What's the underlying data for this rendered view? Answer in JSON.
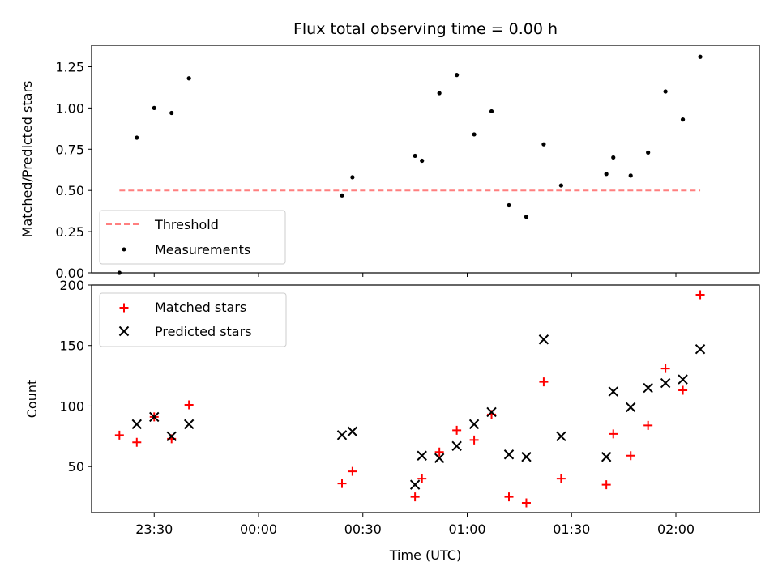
{
  "chart_data": [
    {
      "type": "scatter",
      "title": "Flux total observing time = 0.00 h",
      "xlabel": "",
      "ylabel": "Matched/Predicted stars",
      "ylim": [
        0.0,
        1.38
      ],
      "yticks": [
        "0.00",
        "0.25",
        "0.50",
        "0.75",
        "1.00",
        "1.25"
      ],
      "x_axis": {
        "type": "time",
        "range": [
          "23:12",
          "02:24"
        ],
        "tick_times": [
          "23:30",
          "00:00",
          "00:30",
          "01:00",
          "01:30",
          "02:00"
        ],
        "tick_labels_shown": false
      },
      "grid": false,
      "legend": {
        "placement": "lower-left",
        "entries": [
          "Threshold",
          "Measurements"
        ]
      },
      "threshold": {
        "name": "Threshold",
        "value": 0.5,
        "x_range": [
          "23:20",
          "02:07"
        ],
        "color": "#ff7f7f",
        "style": "dashed"
      },
      "series": [
        {
          "name": "Measurements",
          "marker": "dot",
          "color": "#000000",
          "x": [
            "23:20",
            "23:25",
            "23:30",
            "23:35",
            "23:40",
            "00:24",
            "00:27",
            "00:45",
            "00:47",
            "00:52",
            "00:57",
            "01:02",
            "01:07",
            "01:12",
            "01:17",
            "01:22",
            "01:27",
            "01:40",
            "01:42",
            "01:47",
            "01:52",
            "01:57",
            "02:02",
            "02:07"
          ],
          "values": [
            0.0,
            0.82,
            1.0,
            0.97,
            1.18,
            0.47,
            0.58,
            0.71,
            0.68,
            1.09,
            1.2,
            0.84,
            0.98,
            0.41,
            0.34,
            0.78,
            0.53,
            0.6,
            0.7,
            0.59,
            0.73,
            1.1,
            0.93,
            1.31
          ]
        }
      ]
    },
    {
      "type": "scatter",
      "title": "",
      "xlabel": "Time (UTC)",
      "ylabel": "Count",
      "ylim": [
        12,
        200
      ],
      "yticks": [
        "50",
        "100",
        "150",
        "200"
      ],
      "x_axis": {
        "type": "time",
        "range": [
          "23:12",
          "02:24"
        ],
        "tick_times": [
          "23:30",
          "00:00",
          "00:30",
          "01:00",
          "01:30",
          "02:00"
        ],
        "tick_labels": [
          "23:30",
          "00:00",
          "00:30",
          "01:00",
          "01:30",
          "02:00"
        ]
      },
      "grid": false,
      "legend": {
        "placement": "upper-left",
        "entries": [
          "Matched stars",
          "Predicted stars"
        ]
      },
      "series": [
        {
          "name": "Matched stars",
          "marker": "plus",
          "color": "#ff0000",
          "x": [
            "23:20",
            "23:25",
            "23:30",
            "23:35",
            "23:40",
            "00:24",
            "00:27",
            "00:45",
            "00:47",
            "00:52",
            "00:57",
            "01:02",
            "01:07",
            "01:12",
            "01:17",
            "01:22",
            "01:27",
            "01:40",
            "01:42",
            "01:47",
            "01:52",
            "01:57",
            "02:02",
            "02:07"
          ],
          "values": [
            76,
            70,
            91,
            73,
            101,
            36,
            46,
            25,
            40,
            62,
            80,
            72,
            93,
            25,
            20,
            120,
            40,
            35,
            77,
            59,
            84,
            131,
            113,
            192
          ]
        },
        {
          "name": "Predicted stars",
          "marker": "x",
          "color": "#000000",
          "x": [
            "23:20",
            "23:25",
            "23:30",
            "23:35",
            "23:40",
            "00:24",
            "00:27",
            "00:45",
            "00:47",
            "00:52",
            "00:57",
            "01:02",
            "01:07",
            "01:12",
            "01:17",
            "01:22",
            "01:27",
            "01:40",
            "01:42",
            "01:47",
            "01:52",
            "01:57",
            "02:02",
            "02:07"
          ],
          "values": [
            null,
            85,
            91,
            75,
            85,
            76,
            79,
            35,
            59,
            57,
            67,
            85,
            95,
            60,
            58,
            155,
            75,
            58,
            112,
            99,
            115,
            119,
            122,
            147
          ]
        }
      ]
    }
  ]
}
